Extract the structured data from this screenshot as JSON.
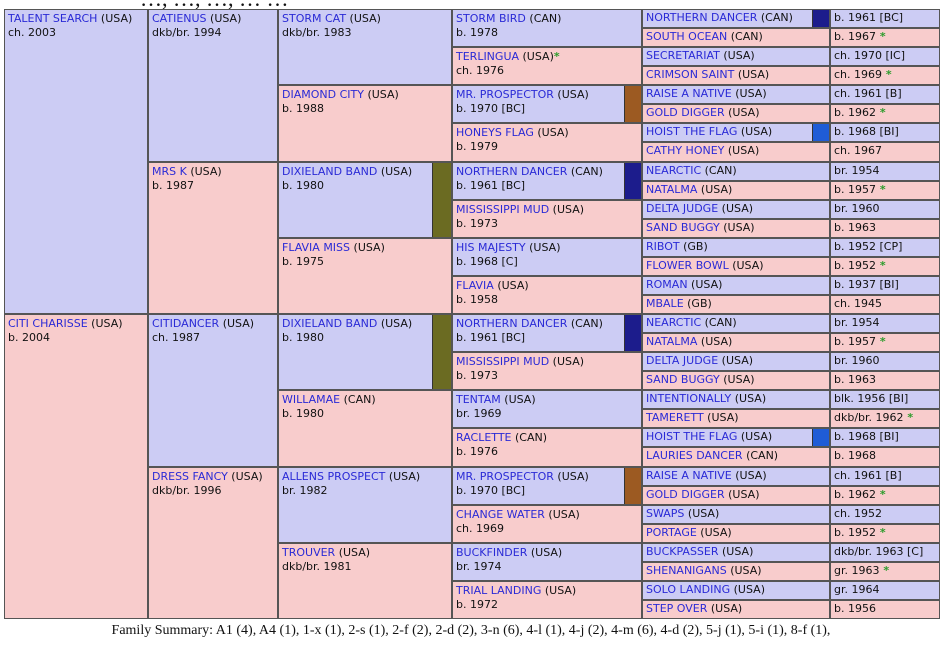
{
  "header_text": "…, …, …, … …",
  "colors": {
    "male": "#ccccf4",
    "female": "#f8cccc",
    "name": "#2a2ad6",
    "star": "#2c9c2c",
    "blue_chip": "#1c1c8c",
    "brown_chip": "#9c5a22",
    "olive_chip": "#6b6b22",
    "bright_blue_chip": "#1f5cd6"
  },
  "pedigree": {
    "g1": [
      {
        "name": "TALENT SEARCH",
        "country": "(USA)",
        "info": "ch. 2003",
        "sex": "m"
      },
      {
        "name": "CITI CHARISSE",
        "country": "(USA)",
        "info": "b. 2004",
        "sex": "f"
      }
    ],
    "g2": [
      {
        "name": "CATIENUS",
        "country": "(USA)",
        "info": "dkb/br. 1994",
        "sex": "m"
      },
      {
        "name": "MRS K",
        "country": "(USA)",
        "info": "b. 1987",
        "sex": "f"
      },
      {
        "name": "CITIDANCER",
        "country": "(USA)",
        "info": "ch. 1987",
        "sex": "m"
      },
      {
        "name": "DRESS FANCY",
        "country": "(USA)",
        "info": "dkb/br. 1996",
        "sex": "f"
      }
    ],
    "g3": [
      {
        "name": "STORM CAT",
        "country": "(USA)",
        "info": "dkb/br. 1983",
        "sex": "m"
      },
      {
        "name": "DIAMOND CITY",
        "country": "(USA)",
        "info": "b. 1988",
        "sex": "f"
      },
      {
        "name": "DIXIELAND BAND",
        "country": "(USA)",
        "info": "b. 1980",
        "sex": "m",
        "chip": "olive"
      },
      {
        "name": "FLAVIA MISS",
        "country": "(USA)",
        "info": "b. 1975",
        "sex": "f"
      },
      {
        "name": "DIXIELAND BAND",
        "country": "(USA)",
        "info": "b. 1980",
        "sex": "m",
        "chip": "olive"
      },
      {
        "name": "WILLAMAE",
        "country": "(CAN)",
        "info": "b. 1980",
        "sex": "f"
      },
      {
        "name": "ALLENS PROSPECT",
        "country": "(USA)",
        "info": "br. 1982",
        "sex": "m"
      },
      {
        "name": "TROUVER",
        "country": "(USA)",
        "info": "dkb/br. 1981",
        "sex": "f"
      }
    ],
    "g4": [
      {
        "name": "STORM BIRD",
        "country": "(CAN)",
        "info": "b. 1978",
        "sex": "m"
      },
      {
        "name": "TERLINGUA",
        "country": "(USA)",
        "star": "*",
        "info": "ch. 1976",
        "sex": "f"
      },
      {
        "name": "MR. PROSPECTOR",
        "country": "(USA)",
        "info": "b. 1970 [BC]",
        "sex": "m",
        "chip": "brown"
      },
      {
        "name": "HONEYS FLAG",
        "country": "(USA)",
        "info": "b. 1979",
        "sex": "f"
      },
      {
        "name": "NORTHERN DANCER",
        "country": "(CAN)",
        "info": "b. 1961 [BC]",
        "sex": "m",
        "chip": "blue"
      },
      {
        "name": "MISSISSIPPI MUD",
        "country": "(USA)",
        "info": "b. 1973",
        "sex": "f"
      },
      {
        "name": "HIS MAJESTY",
        "country": "(USA)",
        "info": "b. 1968 [C]",
        "sex": "m"
      },
      {
        "name": "FLAVIA",
        "country": "(USA)",
        "info": "b. 1958",
        "sex": "f"
      },
      {
        "name": "NORTHERN DANCER",
        "country": "(CAN)",
        "info": "b. 1961 [BC]",
        "sex": "m",
        "chip": "blue"
      },
      {
        "name": "MISSISSIPPI MUD",
        "country": "(USA)",
        "info": "b. 1973",
        "sex": "f"
      },
      {
        "name": "TENTAM",
        "country": "(USA)",
        "info": "br. 1969",
        "sex": "m"
      },
      {
        "name": "RACLETTE",
        "country": "(CAN)",
        "info": "b. 1976",
        "sex": "f"
      },
      {
        "name": "MR. PROSPECTOR",
        "country": "(USA)",
        "info": "b. 1970 [BC]",
        "sex": "m",
        "chip": "brown"
      },
      {
        "name": "CHANGE WATER",
        "country": "(USA)",
        "info": "ch. 1969",
        "sex": "f"
      },
      {
        "name": "BUCKFINDER",
        "country": "(USA)",
        "info": "br. 1974",
        "sex": "m"
      },
      {
        "name": "TRIAL LANDING",
        "country": "(USA)",
        "info": "b. 1972",
        "sex": "f"
      }
    ],
    "g5": [
      {
        "name": "NORTHERN DANCER",
        "country": "(CAN)",
        "info": "b. 1961 [BC]",
        "sex": "m",
        "chip": "blue"
      },
      {
        "name": "SOUTH OCEAN",
        "country": "(CAN)",
        "info": "b. 1967",
        "star": "*",
        "sex": "f"
      },
      {
        "name": "SECRETARIAT",
        "country": "(USA)",
        "info": "ch. 1970 [IC]",
        "sex": "m"
      },
      {
        "name": "CRIMSON SAINT",
        "country": "(USA)",
        "info": "ch. 1969",
        "star": "*",
        "sex": "f"
      },
      {
        "name": "RAISE A NATIVE",
        "country": "(USA)",
        "info": "ch. 1961 [B]",
        "sex": "m"
      },
      {
        "name": "GOLD DIGGER",
        "country": "(USA)",
        "info": "b. 1962",
        "star": "*",
        "sex": "f"
      },
      {
        "name": "HOIST THE FLAG",
        "country": "(USA)",
        "info": "b. 1968 [BI]",
        "sex": "m",
        "chip": "bright"
      },
      {
        "name": "CATHY HONEY",
        "country": "(USA)",
        "info": "ch. 1967",
        "sex": "f"
      },
      {
        "name": "NEARCTIC",
        "country": "(CAN)",
        "info": "br. 1954",
        "sex": "m"
      },
      {
        "name": "NATALMA",
        "country": "(USA)",
        "info": "b. 1957",
        "star": "*",
        "sex": "f"
      },
      {
        "name": "DELTA JUDGE",
        "country": "(USA)",
        "info": "br. 1960",
        "sex": "m"
      },
      {
        "name": "SAND BUGGY",
        "country": "(USA)",
        "info": "b. 1963",
        "sex": "f"
      },
      {
        "name": "RIBOT",
        "country": "(GB)",
        "info": "b. 1952 [CP]",
        "sex": "m"
      },
      {
        "name": "FLOWER BOWL",
        "country": "(USA)",
        "info": "b. 1952",
        "star": "*",
        "sex": "f"
      },
      {
        "name": "ROMAN",
        "country": "(USA)",
        "info": "b. 1937 [BI]",
        "sex": "m"
      },
      {
        "name": "MBALE",
        "country": "(GB)",
        "info": "ch. 1945",
        "sex": "f"
      },
      {
        "name": "NEARCTIC",
        "country": "(CAN)",
        "info": "br. 1954",
        "sex": "m"
      },
      {
        "name": "NATALMA",
        "country": "(USA)",
        "info": "b. 1957",
        "star": "*",
        "sex": "f"
      },
      {
        "name": "DELTA JUDGE",
        "country": "(USA)",
        "info": "br. 1960",
        "sex": "m"
      },
      {
        "name": "SAND BUGGY",
        "country": "(USA)",
        "info": "b. 1963",
        "sex": "f"
      },
      {
        "name": "INTENTIONALLY",
        "country": "(USA)",
        "info": "blk. 1956 [BI]",
        "sex": "m"
      },
      {
        "name": "TAMERETT",
        "country": "(USA)",
        "info": "dkb/br. 1962",
        "star": "*",
        "sex": "f"
      },
      {
        "name": "HOIST THE FLAG",
        "country": "(USA)",
        "info": "b. 1968 [BI]",
        "sex": "m",
        "chip": "bright"
      },
      {
        "name": "LAURIES DANCER",
        "country": "(CAN)",
        "info": "b. 1968",
        "sex": "f"
      },
      {
        "name": "RAISE A NATIVE",
        "country": "(USA)",
        "info": "ch. 1961 [B]",
        "sex": "m"
      },
      {
        "name": "GOLD DIGGER",
        "country": "(USA)",
        "info": "b. 1962",
        "star": "*",
        "sex": "f"
      },
      {
        "name": "SWAPS",
        "country": "(USA)",
        "info": "ch. 1952",
        "sex": "m"
      },
      {
        "name": "PORTAGE",
        "country": "(USA)",
        "info": "b. 1952",
        "star": "*",
        "sex": "f"
      },
      {
        "name": "BUCKPASSER",
        "country": "(USA)",
        "info": "dkb/br. 1963 [C]",
        "sex": "m"
      },
      {
        "name": "SHENANIGANS",
        "country": "(USA)",
        "info": "gr. 1963",
        "star": "*",
        "sex": "f"
      },
      {
        "name": "SOLO LANDING",
        "country": "(USA)",
        "info": "gr. 1964",
        "sex": "m"
      },
      {
        "name": "STEP OVER",
        "country": "(USA)",
        "info": "b. 1956",
        "sex": "f"
      }
    ]
  },
  "family_summary": "Family Summary: A1 (4), A4 (1), 1-x (1), 2-s (1), 2-f (2), 2-d (2), 3-n (6), 4-l (1), 4-j (2), 4-m (6), 4-d (2), 5-j (1), 5-i (1), 8-f (1),"
}
